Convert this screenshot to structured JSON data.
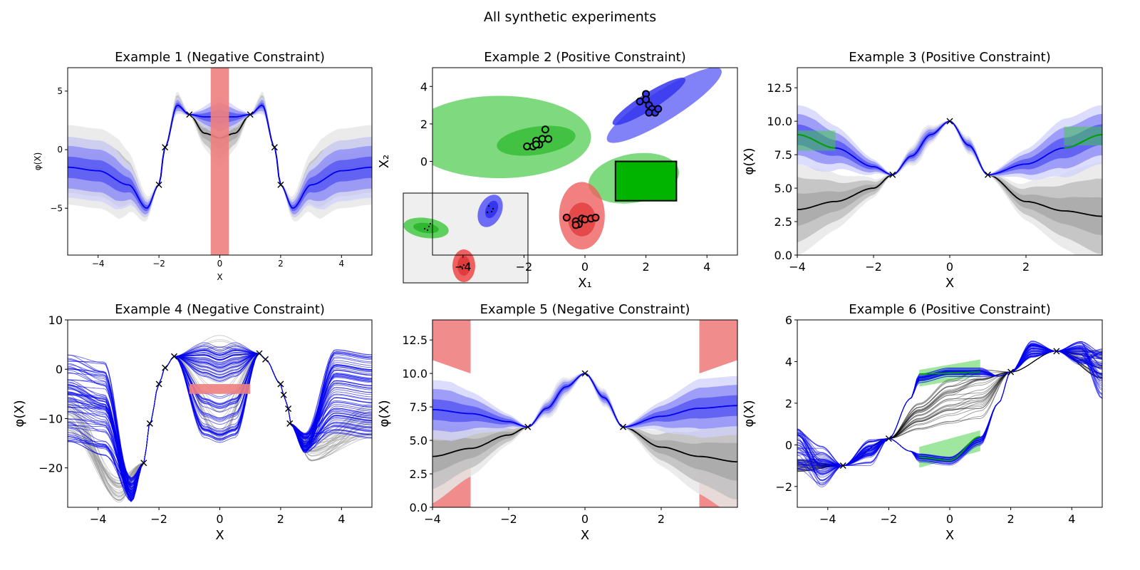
{
  "figure": {
    "suptitle": "All synthetic experiments"
  },
  "colors": {
    "blue": "#0000ee",
    "black": "#000000",
    "red": "#ef8080",
    "green": "#3fcf3f",
    "green_rect": "#00b400"
  },
  "chart_data": [
    {
      "id": "p1",
      "type": "line",
      "title": "Example 1 (Negative Constraint)",
      "xlabel": "X",
      "ylabel": "φ(X)",
      "xlim": [
        -5,
        5
      ],
      "ylim": [
        -9,
        7
      ],
      "xticks": [
        -4,
        -2,
        0,
        2,
        4
      ],
      "yticks": [
        -5,
        0,
        5
      ],
      "grid": false,
      "constraint_regions": [
        {
          "x": [
            -0.3,
            0.3
          ],
          "y": [
            -9,
            7
          ],
          "kind": "negative"
        }
      ],
      "observations": {
        "x": [
          -2.0,
          -1.8,
          -1.0,
          1.0,
          1.8,
          2.0
        ],
        "y": [
          -3.0,
          0.2,
          3.0,
          3.0,
          0.2,
          -3.0
        ]
      },
      "series": [
        {
          "x": [
            -5,
            -4,
            -3,
            -2.4,
            -2.0,
            -1.8,
            -1.4,
            -1.0,
            -0.5,
            0,
            0.5,
            1.0,
            1.4,
            1.8,
            2.0,
            2.4,
            3,
            4,
            5
          ],
          "y": [
            -1.3,
            -1.6,
            -2.8,
            -5.0,
            -3.0,
            0.2,
            4.0,
            3.0,
            1.4,
            1.0,
            1.4,
            3.0,
            4.0,
            0.2,
            -3.0,
            -5.0,
            -2.8,
            -1.6,
            -1.3
          ]
        },
        {
          "x": [
            -5,
            -4,
            -3,
            -2.4,
            -2.0,
            -1.8,
            -1.4,
            -1.0,
            -0.5,
            0,
            0.5,
            1.0,
            1.4,
            1.8,
            2.0,
            2.4,
            3,
            4,
            5
          ],
          "y": [
            -1.5,
            -1.8,
            -3.0,
            -5.0,
            -3.0,
            0.2,
            3.8,
            3.0,
            2.8,
            2.8,
            2.8,
            3.0,
            3.8,
            0.2,
            -3.0,
            -5.0,
            -3.0,
            -1.8,
            -1.5
          ]
        }
      ]
    },
    {
      "id": "p2",
      "type": "scatter",
      "title": "Example 2 (Positive Constraint)",
      "xlabel": "X₁",
      "ylabel": "X₂",
      "xlim": [
        -5,
        5
      ],
      "ylim": [
        -5,
        5
      ],
      "xticks": [
        -4,
        -2,
        0,
        2,
        4
      ],
      "yticks": [
        0,
        2,
        4
      ],
      "grid": false,
      "clusters": [
        {
          "color": "green",
          "x": [
            -1.9,
            -1.7,
            -1.6,
            -1.5,
            -1.4,
            -1.2,
            -1.6,
            -1.3
          ],
          "y": [
            0.8,
            0.8,
            1.1,
            0.9,
            1.2,
            1.2,
            0.9,
            1.7
          ]
        },
        {
          "color": "blue",
          "x": [
            1.8,
            2.0,
            2.1,
            2.2,
            2.3,
            2.4,
            2.0,
            2.1
          ],
          "y": [
            3.2,
            3.6,
            3.0,
            2.8,
            2.6,
            2.8,
            3.3,
            2.6
          ]
        },
        {
          "color": "red",
          "x": [
            -0.6,
            -0.3,
            -0.1,
            0.0,
            0.2,
            0.35,
            -0.2,
            -0.3
          ],
          "y": [
            -3.0,
            -3.2,
            -3.05,
            -3.1,
            -3.05,
            -3.0,
            -3.35,
            -3.4
          ]
        }
      ],
      "constraint_box": {
        "x": [
          1,
          3
        ],
        "y": [
          -2.1,
          0
        ]
      }
    },
    {
      "id": "p3",
      "type": "line",
      "title": "Example 3 (Positive Constraint)",
      "xlabel": "X",
      "ylabel": "φ(X)",
      "xlim": [
        -4,
        4
      ],
      "ylim": [
        0,
        14
      ],
      "xticks": [
        -4,
        -2,
        0,
        2
      ],
      "yticks": [
        0.0,
        2.5,
        5.0,
        7.5,
        10.0,
        12.5
      ],
      "grid": false,
      "constraint_regions": [
        {
          "x": [
            -4,
            -3
          ],
          "y": [
            7.8,
            9.3
          ],
          "kind": "positive"
        },
        {
          "x": [
            3,
            4
          ],
          "y": [
            8.2,
            9.6
          ],
          "kind": "positive"
        }
      ],
      "observations": {
        "x": [
          -1.5,
          0,
          1.0
        ],
        "y": [
          6.0,
          10.0,
          6.0
        ]
      },
      "series": [
        {
          "x": [
            -4,
            -3,
            -2,
            -1.5,
            -1,
            -0.5,
            0,
            0.5,
            1,
            2,
            3,
            4
          ],
          "y": [
            3.4,
            4.0,
            5.0,
            6.0,
            7.4,
            9.0,
            10.0,
            8.2,
            6.0,
            4.0,
            3.3,
            2.9
          ]
        },
        {
          "x": [
            -4,
            -3,
            -2,
            -1.5,
            -1,
            -0.5,
            0,
            0.5,
            1,
            2,
            3,
            4
          ],
          "y": [
            9.0,
            8.0,
            6.6,
            6.0,
            7.4,
            9.0,
            10.0,
            8.2,
            6.0,
            6.8,
            8.0,
            9.0
          ]
        }
      ]
    },
    {
      "id": "p4",
      "type": "line",
      "title": "Example 4 (Negative Constraint)",
      "xlabel": "X",
      "ylabel": "φ(X)",
      "xlim": [
        -5,
        5
      ],
      "ylim": [
        -28,
        10
      ],
      "xticks": [
        -4,
        -2,
        0,
        2,
        4
      ],
      "yticks": [
        -20,
        -10,
        0,
        10
      ],
      "grid": false,
      "constraint_regions": [
        {
          "x": [
            -1,
            1
          ],
          "y": [
            -5,
            -3
          ],
          "kind": "negative"
        }
      ],
      "observations": {
        "x": [
          -2.5,
          -2.3,
          -2.0,
          -1.8,
          -1.5,
          1.3,
          1.5,
          2.0,
          2.1,
          2.25,
          2.3
        ],
        "y": [
          -19.0,
          -11.0,
          -3.0,
          0.3,
          2.6,
          3.2,
          2.0,
          -3.0,
          -5.2,
          -8.0,
          -11.0
        ]
      }
    },
    {
      "id": "p5",
      "type": "line",
      "title": "Example 5 (Negative Constraint)",
      "xlabel": "X",
      "ylabel": "φ(X)",
      "xlim": [
        -4,
        4
      ],
      "ylim": [
        0,
        14
      ],
      "xticks": [
        -4,
        -2,
        0,
        2
      ],
      "yticks": [
        0.0,
        2.5,
        5.0,
        7.5,
        10.0,
        12.5
      ],
      "grid": false,
      "constraint_regions": [
        {
          "x": [
            -4,
            -3
          ],
          "y_bottom": [
            11,
            10
          ],
          "y_top": [
            14,
            14
          ],
          "kind": "negative"
        },
        {
          "x": [
            -4,
            -3
          ],
          "y_bottom": [
            0,
            0
          ],
          "y_top": [
            6,
            5
          ],
          "kind": "negative"
        },
        {
          "x": [
            3,
            4
          ],
          "y_bottom": [
            10,
            11
          ],
          "y_top": [
            14,
            14
          ],
          "kind": "negative"
        },
        {
          "x": [
            3,
            4
          ],
          "y_bottom": [
            0,
            0
          ],
          "y_top": [
            5,
            6
          ],
          "kind": "negative"
        }
      ],
      "observations": {
        "x": [
          -1.5,
          0,
          1.0
        ],
        "y": [
          6.0,
          10.0,
          6.0
        ]
      },
      "series": [
        {
          "x": [
            -4,
            -3,
            -2,
            -1.5,
            -1,
            -0.5,
            0,
            0.5,
            1,
            2,
            3,
            4
          ],
          "y": [
            3.8,
            4.4,
            5.4,
            6.0,
            7.4,
            9.0,
            10.0,
            8.2,
            6.0,
            4.5,
            3.8,
            3.4
          ]
        },
        {
          "x": [
            -4,
            -3,
            -2,
            -1.5,
            -1,
            -0.5,
            0,
            0.5,
            1,
            2,
            3,
            4
          ],
          "y": [
            7.3,
            7.0,
            6.4,
            6.0,
            7.4,
            9.0,
            10.0,
            8.2,
            6.0,
            6.8,
            7.4,
            7.6
          ]
        }
      ]
    },
    {
      "id": "p6",
      "type": "line",
      "title": "Example 6 (Positive Constraint)",
      "xlabel": "X",
      "ylabel": "φ(X)",
      "xlim": [
        -5,
        5
      ],
      "ylim": [
        -3,
        6
      ],
      "xticks": [
        -4,
        -2,
        0,
        2,
        4
      ],
      "yticks": [
        -2,
        0,
        2,
        4,
        6
      ],
      "grid": false,
      "constraint_regions": [
        {
          "x": [
            -1,
            1
          ],
          "y_bottom": [
            2.8,
            3.3
          ],
          "y_top": [
            3.6,
            4.1
          ],
          "kind": "positive"
        },
        {
          "x": [
            -1,
            1
          ],
          "y_bottom": [
            -1.1,
            -0.3
          ],
          "y_top": [
            -0.1,
            0.7
          ],
          "kind": "positive"
        }
      ],
      "observations": {
        "x": [
          -3.5,
          -2.0,
          2.0,
          3.5
        ],
        "y": [
          -1.0,
          0.3,
          3.5,
          4.5
        ]
      }
    }
  ]
}
